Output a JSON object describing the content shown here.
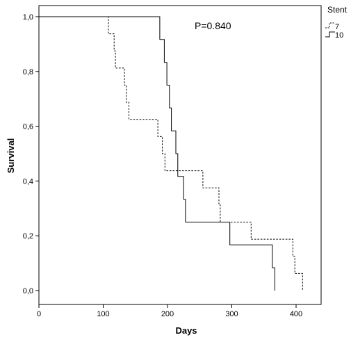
{
  "chart_data": {
    "type": "line",
    "subtype": "kaplan-meier step",
    "xlabel": "Days",
    "ylabel": "Survival",
    "xlim": [
      0,
      415
    ],
    "ylim": [
      -0.05,
      1.05
    ],
    "x_ticks": [
      0,
      100,
      200,
      300,
      400
    ],
    "y_ticks": [
      0.0,
      0.2,
      0.4,
      0.6,
      0.8,
      1.0
    ],
    "x_tick_labels": [
      "0",
      "100",
      "200",
      "300",
      "400"
    ],
    "y_tick_labels": [
      "0,0",
      "0,2",
      "0,4",
      "0,6",
      "0,8",
      "1,0"
    ],
    "annotation": "P=0.840",
    "legend": {
      "title": "Stent",
      "position": "top-right, outside plot",
      "entries": [
        "7",
        "10"
      ]
    },
    "series": [
      {
        "name": "7",
        "line_style": "dashed",
        "color": "#000000",
        "steps": [
          [
            0,
            1.0
          ],
          [
            108,
            0.9375
          ],
          [
            117,
            0.875
          ],
          [
            119,
            0.8125
          ],
          [
            133,
            0.75
          ],
          [
            136,
            0.6875
          ],
          [
            140,
            0.625
          ],
          [
            185,
            0.5625
          ],
          [
            192,
            0.5
          ],
          [
            196,
            0.4375
          ],
          [
            255,
            0.375
          ],
          [
            280,
            0.3125
          ],
          [
            282,
            0.25
          ],
          [
            330,
            0.1875
          ],
          [
            395,
            0.125
          ],
          [
            398,
            0.0625
          ],
          [
            410,
            0.0
          ]
        ]
      },
      {
        "name": "10",
        "line_style": "solid",
        "color": "#000000",
        "steps": [
          [
            0,
            1.0
          ],
          [
            188,
            0.9167
          ],
          [
            195,
            0.8333
          ],
          [
            199,
            0.75
          ],
          [
            203,
            0.6667
          ],
          [
            206,
            0.5833
          ],
          [
            213,
            0.5
          ],
          [
            216,
            0.4167
          ],
          [
            225,
            0.3333
          ],
          [
            228,
            0.25
          ],
          [
            297,
            0.1667
          ],
          [
            363,
            0.0833
          ],
          [
            367,
            0.0
          ]
        ]
      }
    ]
  }
}
